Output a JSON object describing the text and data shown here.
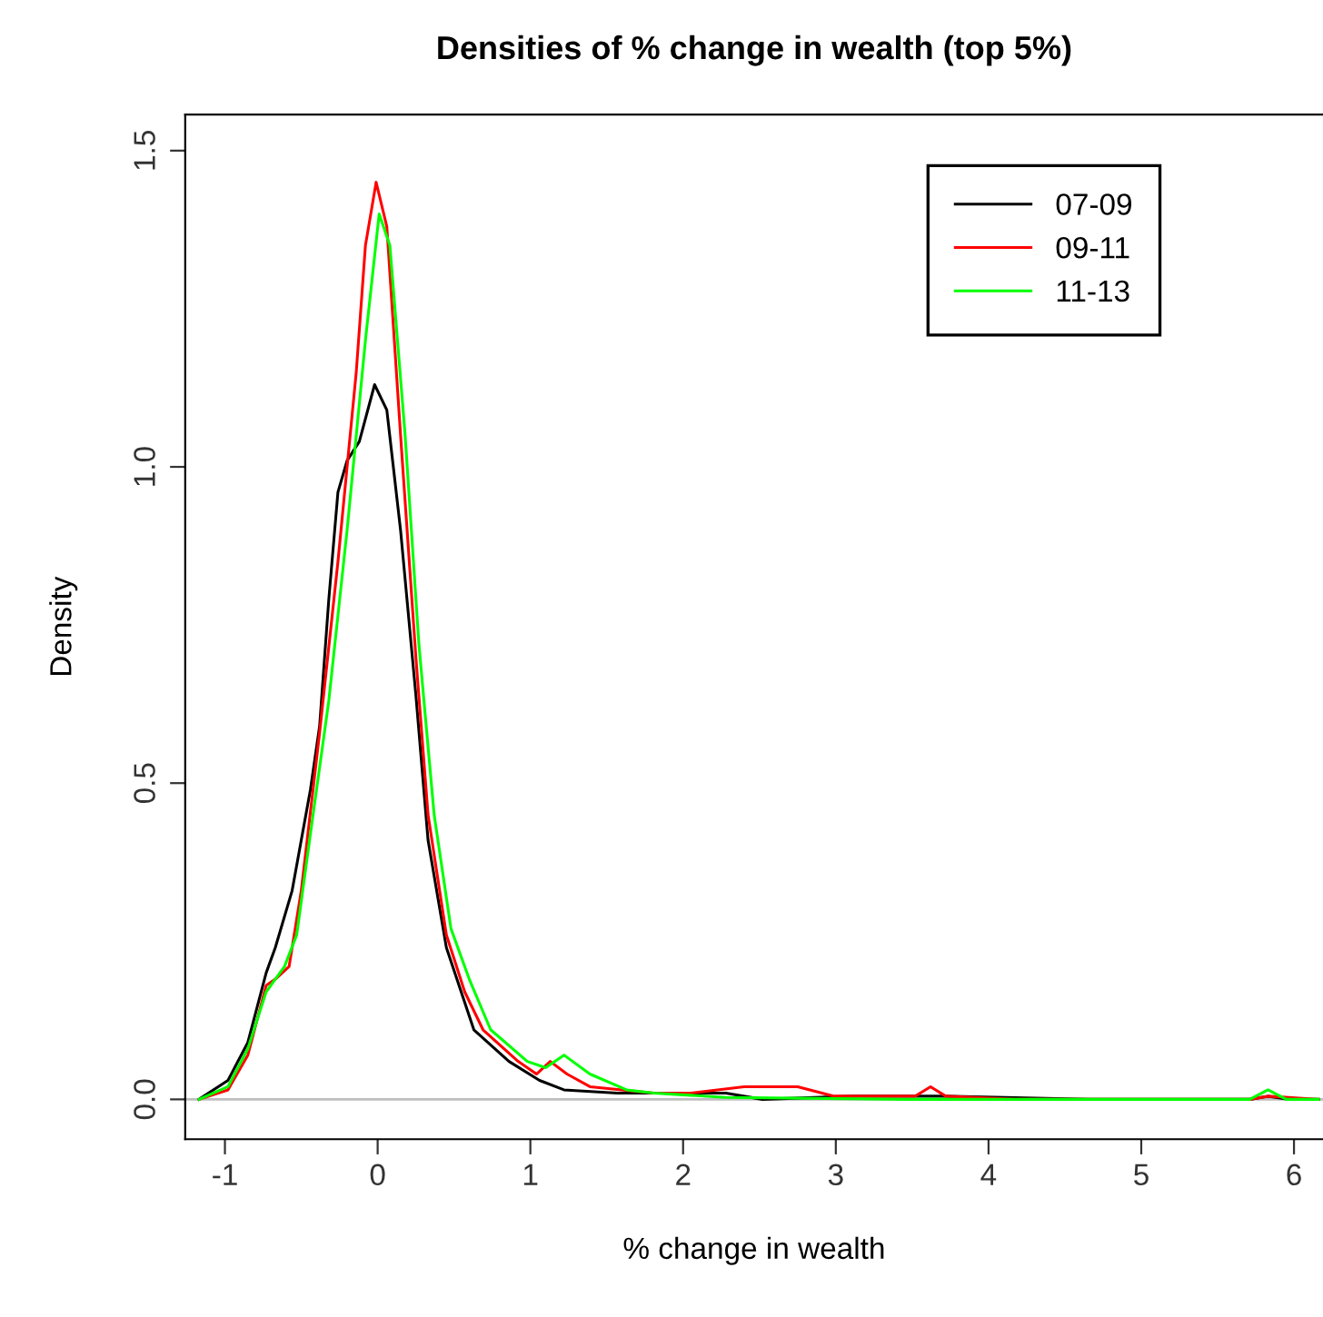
{
  "chart_data": {
    "type": "line",
    "title": "Densities of % change in wealth (top 5%)",
    "xlabel": "% change in wealth",
    "ylabel": "Density",
    "xlim": [
      -1.26,
      6.19
    ],
    "xticks": [
      -1,
      0,
      1,
      2,
      3,
      4,
      5,
      6
    ],
    "ylim": [
      -0.063,
      1.557
    ],
    "yticks": [
      {
        "value": 0,
        "label": "0.0"
      },
      0.5,
      {
        "value": 1,
        "label": "1.0"
      },
      1.5
    ],
    "grid": false,
    "legend": "top right",
    "marker": "none",
    "line_style": "solid",
    "ref_lines": [
      {
        "axis": "y",
        "value": 0,
        "color": "#bebebe"
      }
    ],
    "series": [
      {
        "name": "07-09",
        "color": "#000000",
        "x": [
          -1.17,
          -0.98,
          -0.85,
          -0.73,
          -0.67,
          -0.56,
          -0.44,
          -0.38,
          -0.32,
          -0.26,
          -0.2,
          -0.12,
          -0.02,
          0.06,
          0.15,
          0.25,
          0.33,
          0.45,
          0.63,
          0.86,
          1.06,
          1.22,
          1.57,
          2.28,
          2.52,
          3.11,
          3.7,
          4.65,
          5.71,
          5.83,
          5.97,
          6.16
        ],
        "values": [
          0,
          0.03,
          0.09,
          0.2,
          0.24,
          0.33,
          0.49,
          0.59,
          0.79,
          0.96,
          1.01,
          1.04,
          1.13,
          1.09,
          0.9,
          0.64,
          0.41,
          0.24,
          0.11,
          0.06,
          0.03,
          0.015,
          0.01,
          0.01,
          0,
          0.005,
          0.005,
          0,
          0,
          0.005,
          0,
          0
        ]
      },
      {
        "name": "09-11",
        "color": "#ff0000",
        "x": [
          -1.17,
          -0.98,
          -0.85,
          -0.73,
          -0.67,
          -0.58,
          -0.5,
          -0.38,
          -0.26,
          -0.14,
          -0.08,
          -0.01,
          0.06,
          0.15,
          0.25,
          0.33,
          0.45,
          0.57,
          0.69,
          0.92,
          1.04,
          1.13,
          1.24,
          1.39,
          1.81,
          2.05,
          2.4,
          2.75,
          2.99,
          3.52,
          3.62,
          3.72,
          4.17,
          4.65,
          5.71,
          5.83,
          6.16
        ],
        "values": [
          0,
          0.015,
          0.07,
          0.18,
          0.19,
          0.21,
          0.33,
          0.58,
          0.85,
          1.15,
          1.35,
          1.45,
          1.38,
          1.05,
          0.7,
          0.45,
          0.26,
          0.17,
          0.11,
          0.06,
          0.04,
          0.06,
          0.04,
          0.02,
          0.01,
          0.01,
          0.02,
          0.02,
          0.005,
          0.005,
          0.02,
          0.005,
          0,
          0,
          0,
          0.005,
          0
        ]
      },
      {
        "name": "11-13",
        "color": "#00ff00",
        "x": [
          -1.17,
          -0.98,
          -0.85,
          -0.73,
          -0.61,
          -0.53,
          -0.44,
          -0.32,
          -0.2,
          -0.08,
          0.01,
          0.08,
          0.18,
          0.27,
          0.37,
          0.48,
          0.6,
          0.74,
          0.98,
          1.1,
          1.22,
          1.39,
          1.63,
          1.81,
          2.28,
          3.46,
          4.65,
          5.71,
          5.83,
          5.95,
          6.16
        ],
        "values": [
          0,
          0.02,
          0.08,
          0.17,
          0.21,
          0.26,
          0.42,
          0.63,
          0.9,
          1.2,
          1.4,
          1.35,
          1.05,
          0.72,
          0.45,
          0.27,
          0.19,
          0.11,
          0.06,
          0.05,
          0.07,
          0.04,
          0.015,
          0.01,
          0.003,
          0,
          0,
          0,
          0.015,
          0,
          0
        ]
      }
    ]
  }
}
